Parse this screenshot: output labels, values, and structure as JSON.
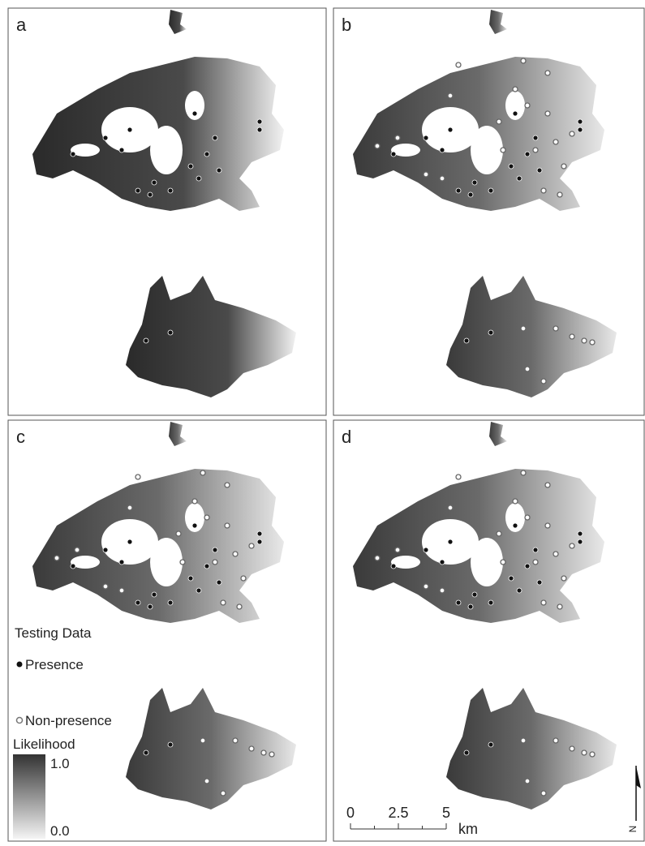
{
  "panels": [
    {
      "label": "a"
    },
    {
      "label": "b"
    },
    {
      "label": "c"
    },
    {
      "label": "d"
    }
  ],
  "legend": {
    "title": "Testing Data",
    "presence": "Presence",
    "non_presence": "Non-presence",
    "likelihood_title": "Likelihood",
    "likelihood_max": "1.0",
    "likelihood_min": "0.0"
  },
  "scale_bar": {
    "ticks": [
      0,
      2.5,
      5
    ],
    "unit": "km"
  },
  "north_arrow": "N"
}
